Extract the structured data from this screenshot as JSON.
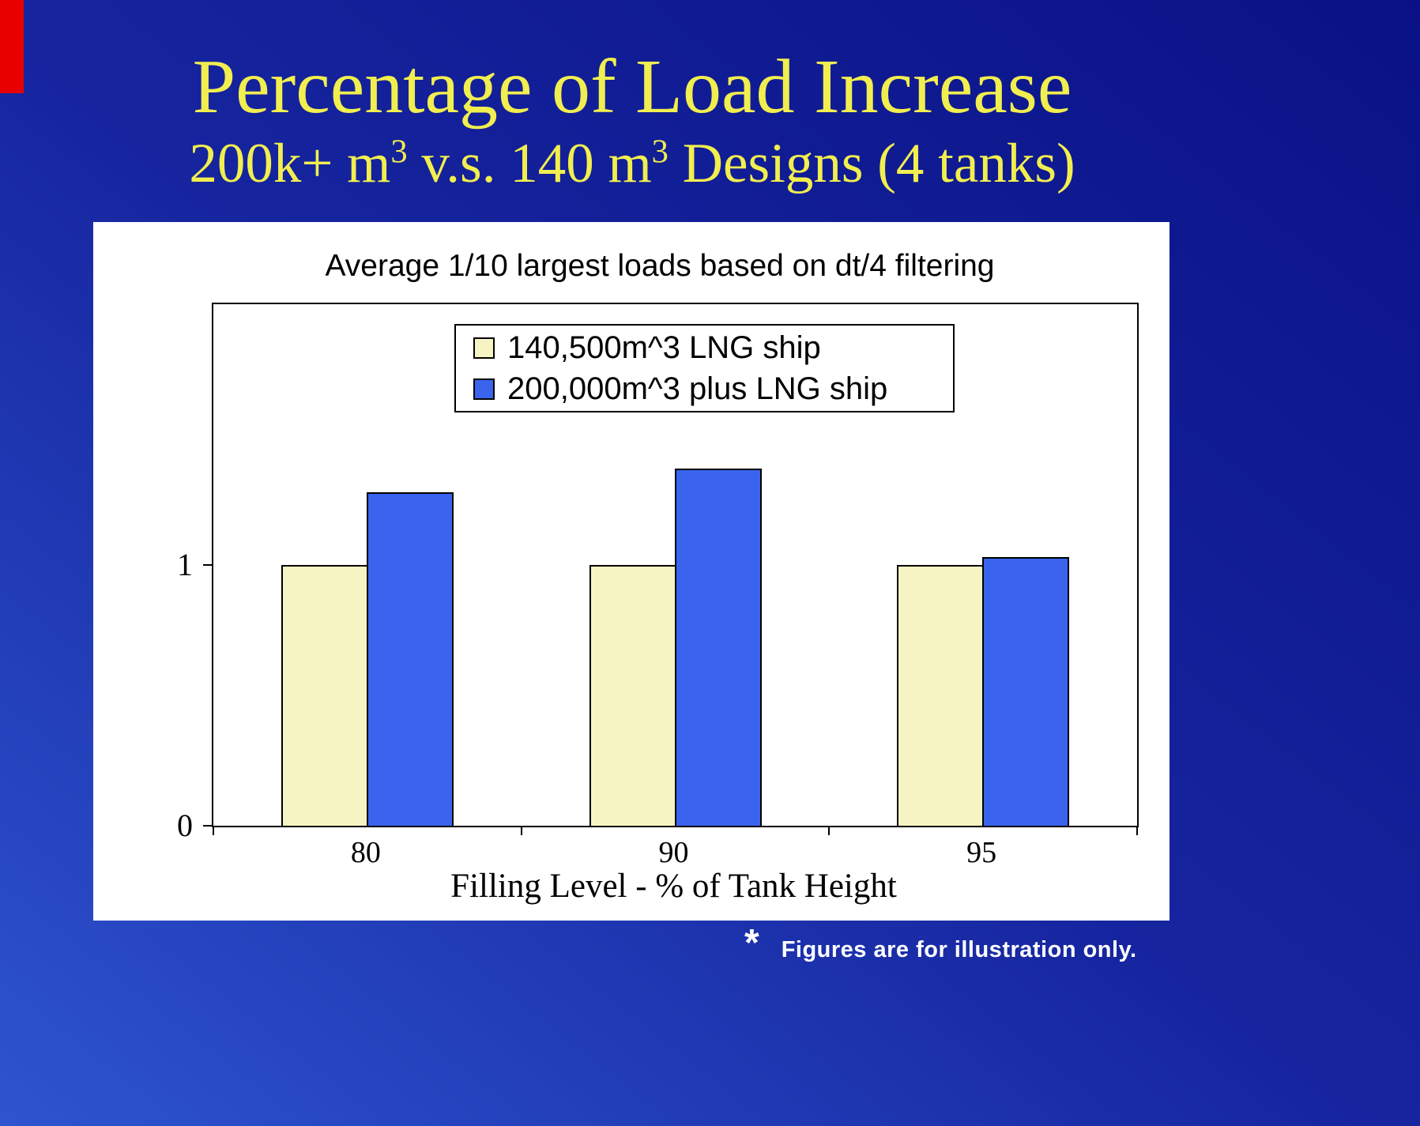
{
  "slide": {
    "title": "Percentage of Load Increase",
    "subtitle": {
      "part1": "200k+ m",
      "sup1": "3",
      "part2": " v.s. 140 m",
      "sup2": "3",
      "part3": " Designs (4 tanks)"
    },
    "footnote": {
      "star": "*",
      "text": "Figures are for illustration only."
    }
  },
  "chart_data": {
    "type": "bar",
    "title": "Average 1/10 largest loads based on dt/4 filtering",
    "categories": [
      "80",
      "90",
      "95"
    ],
    "series": [
      {
        "name": "140,500m^3 LNG ship",
        "color": "#f7f4c3",
        "border": "#000000",
        "values": [
          1.0,
          1.0,
          1.0
        ]
      },
      {
        "name": "200,000m^3 plus LNG ship",
        "color": "#3a64ee",
        "border": "#000000",
        "values": [
          1.28,
          1.37,
          1.03
        ]
      }
    ],
    "xlabel": "Filling Level - % of Tank Height",
    "ylabel": "",
    "ylim": [
      0,
      2
    ],
    "yticks": [
      0,
      1
    ],
    "legend_position": "top-center",
    "grid": false
  },
  "colors": {
    "background_top": "#0a1186",
    "background_bottom": "#2e54d0",
    "title_yellow": "#f1ee4f",
    "accent_red": "#e80000",
    "panel_white": "#ffffff",
    "axis_black": "#000000"
  }
}
